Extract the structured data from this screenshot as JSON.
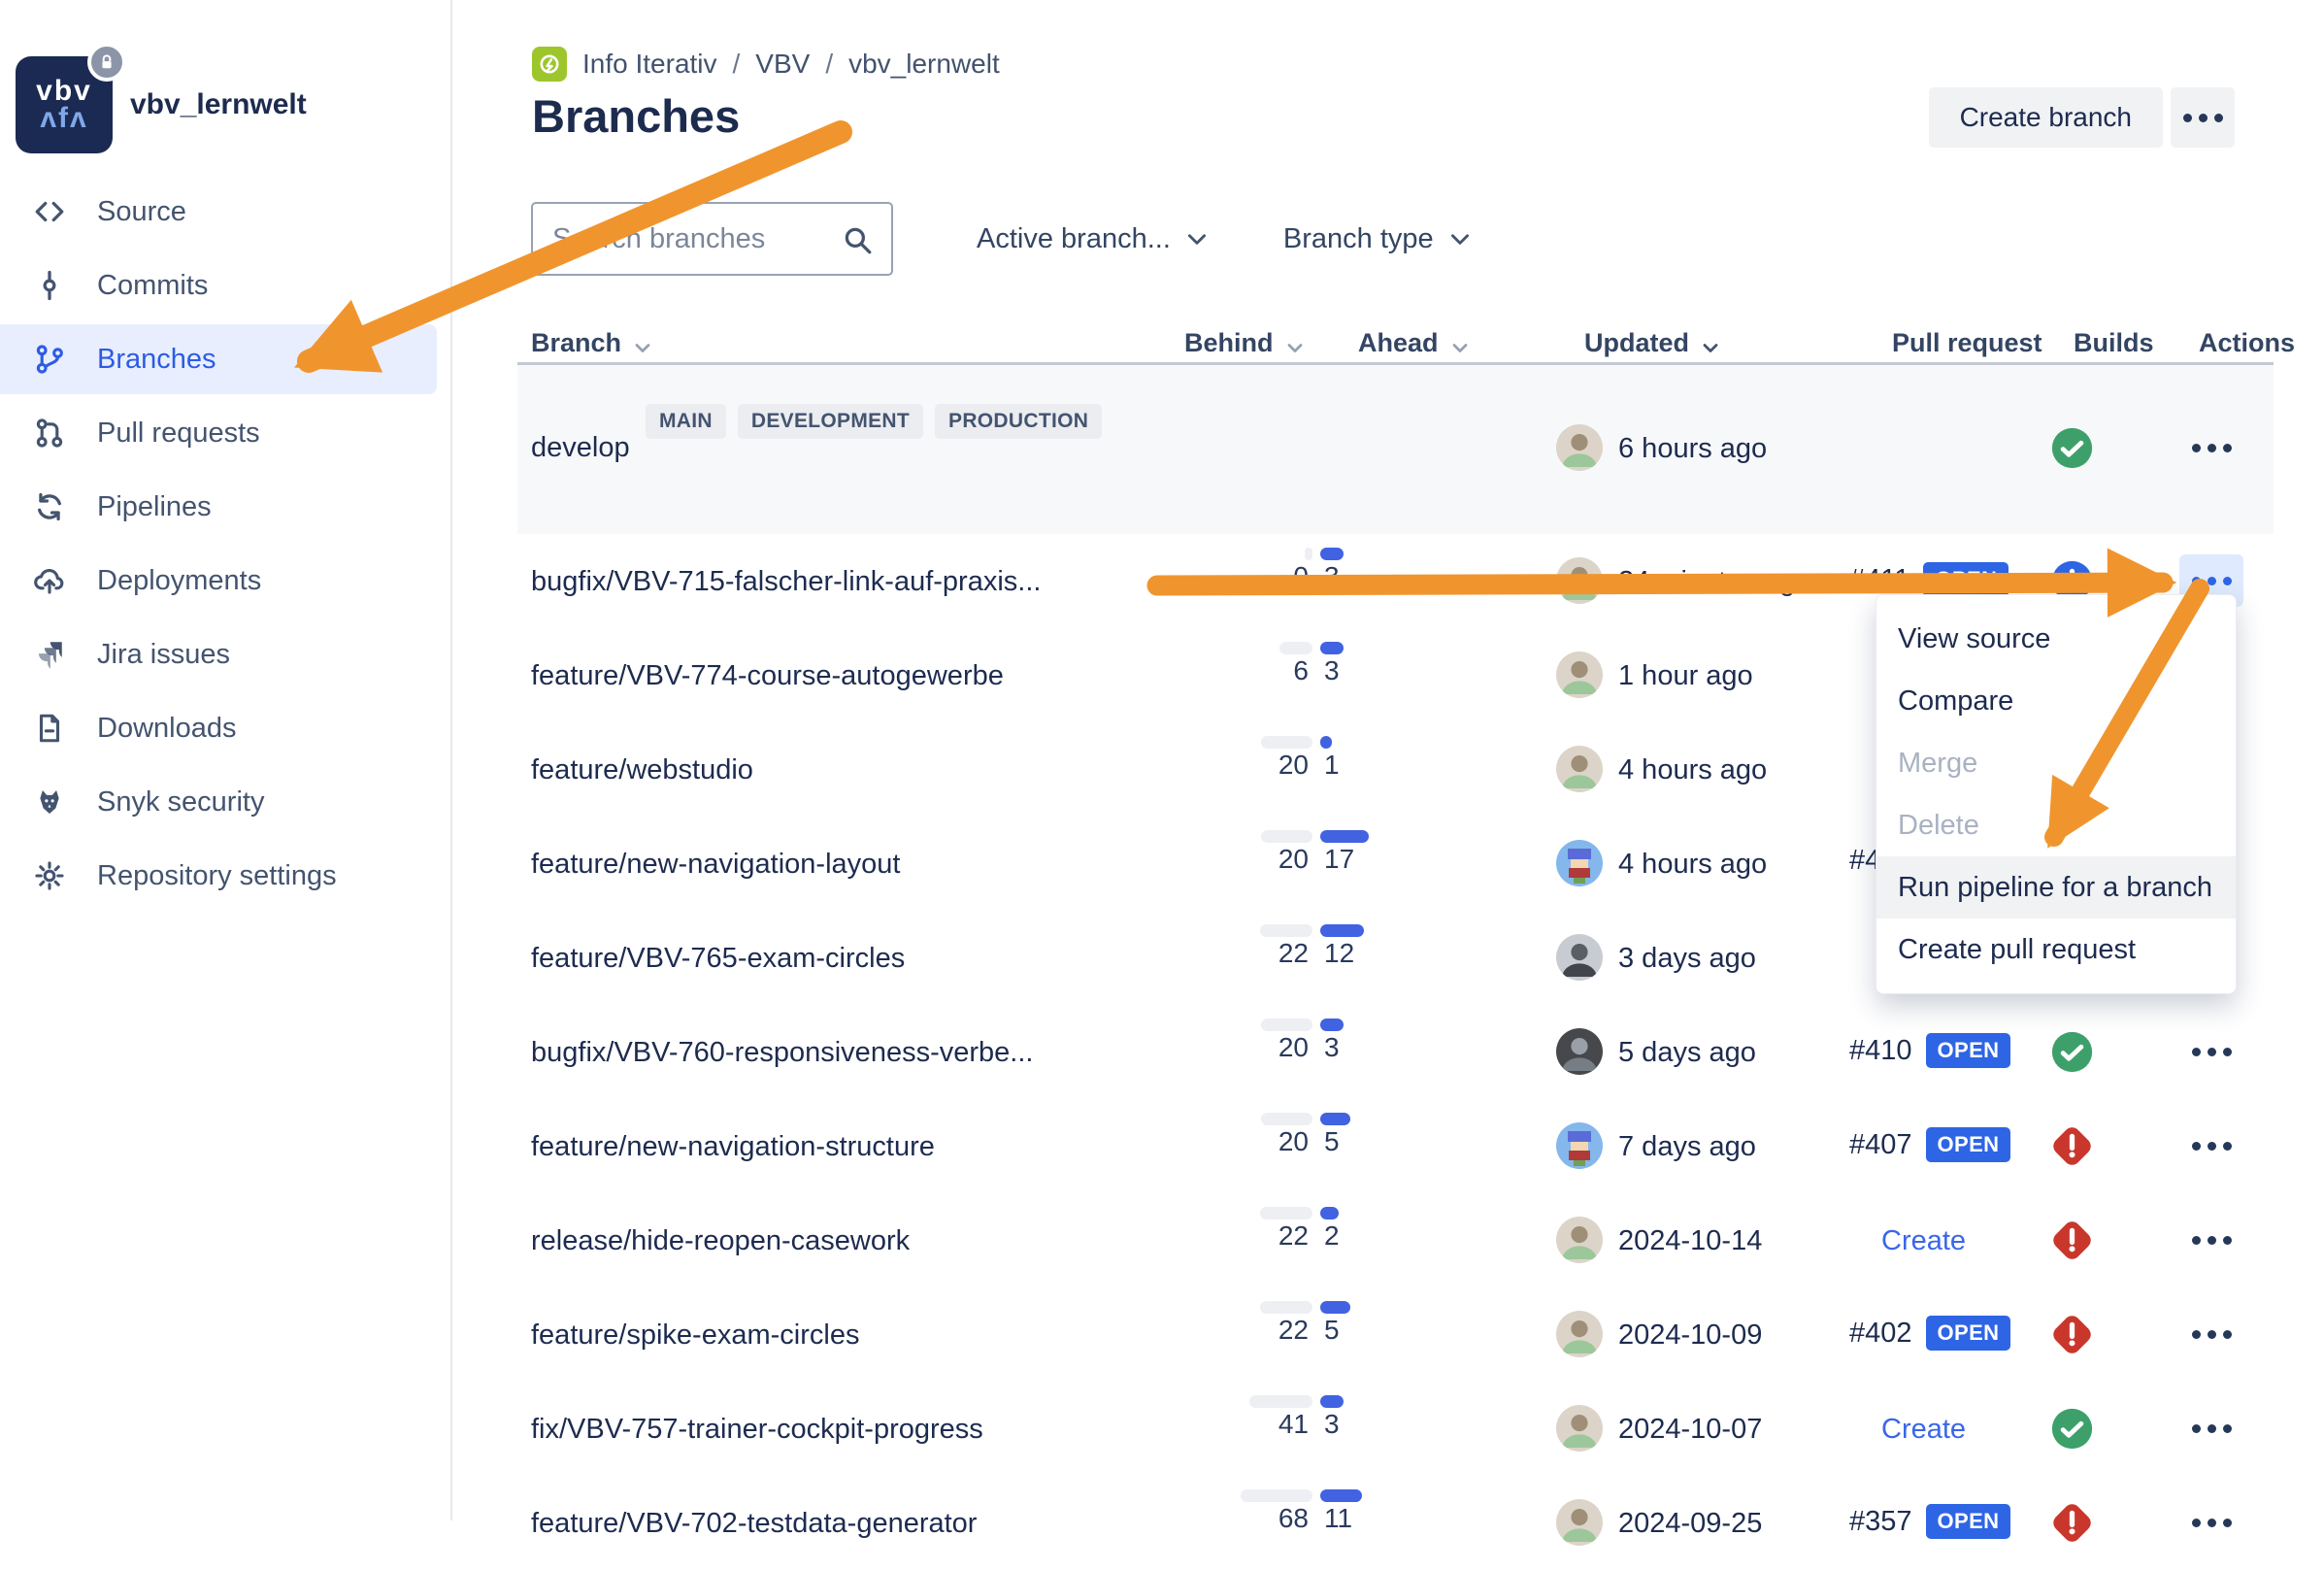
{
  "sidebar": {
    "repo_name": "vbv_lernwelt",
    "logo_text_top": "vbv",
    "logo_text_bottom": "ʌfʌ",
    "items": [
      {
        "label": "Source",
        "icon": "code",
        "active": false
      },
      {
        "label": "Commits",
        "icon": "commit",
        "active": false
      },
      {
        "label": "Branches",
        "icon": "branch",
        "active": true
      },
      {
        "label": "Pull requests",
        "icon": "pull-request",
        "active": false
      },
      {
        "label": "Pipelines",
        "icon": "pipelines",
        "active": false
      },
      {
        "label": "Deployments",
        "icon": "deployments",
        "active": false
      },
      {
        "label": "Jira issues",
        "icon": "jira",
        "active": false
      },
      {
        "label": "Downloads",
        "icon": "downloads",
        "active": false
      },
      {
        "label": "Snyk security",
        "icon": "snyk",
        "active": false
      },
      {
        "label": "Repository settings",
        "icon": "settings",
        "active": false
      }
    ]
  },
  "header": {
    "breadcrumb": [
      "Info Iterativ",
      "VBV",
      "vbv_lernwelt"
    ],
    "title": "Branches",
    "create_branch_label": "Create branch"
  },
  "filters": {
    "search_placeholder": "Search branches",
    "dropdowns": [
      {
        "label": "Active branch..."
      },
      {
        "label": "Branch type"
      }
    ]
  },
  "table": {
    "columns": [
      "Branch",
      "Behind",
      "Ahead",
      "Updated",
      "Pull request",
      "Builds",
      "Actions"
    ],
    "develop_row": {
      "name": "develop",
      "badges": [
        "MAIN",
        "DEVELOPMENT",
        "PRODUCTION"
      ],
      "updated": "6 hours ago",
      "avatar": "photo",
      "build": "success"
    },
    "rows": [
      {
        "name": "bugfix/VBV-715-falscher-link-auf-praxis...",
        "behind": 0,
        "ahead": 3,
        "updated": "24 minutes ago",
        "avatar": "photo",
        "pr_number": "#411",
        "pr_badge": "OPEN",
        "pr_link": "",
        "build": "in_progress",
        "actions": "highlighted"
      },
      {
        "name": "feature/VBV-774-course-autogewerbe",
        "behind": 6,
        "ahead": 3,
        "updated": "1 hour ago",
        "avatar": "photo",
        "pr_number": "",
        "pr_badge": "",
        "pr_link": "",
        "build": "",
        "actions": "hidden"
      },
      {
        "name": "feature/webstudio",
        "behind": 20,
        "ahead": 1,
        "updated": "4 hours ago",
        "avatar": "photo",
        "pr_number": "",
        "pr_badge": "",
        "pr_link": "",
        "build": "",
        "actions": "hidden"
      },
      {
        "name": "feature/new-navigation-layout",
        "behind": 20,
        "ahead": 17,
        "updated": "4 hours ago",
        "avatar": "pixel",
        "pr_number": "#4",
        "pr_badge": "",
        "pr_link": "",
        "build": "",
        "actions": "hidden"
      },
      {
        "name": "feature/VBV-765-exam-circles",
        "behind": 22,
        "ahead": 12,
        "updated": "3 days ago",
        "avatar": "bw",
        "pr_number": "",
        "pr_badge": "",
        "pr_link": "",
        "build": "",
        "actions": "hidden"
      },
      {
        "name": "bugfix/VBV-760-responsiveness-verbe...",
        "behind": 20,
        "ahead": 3,
        "updated": "5 days ago",
        "avatar": "dark",
        "pr_number": "#410",
        "pr_badge": "OPEN",
        "pr_link": "",
        "build": "success",
        "actions": "normal"
      },
      {
        "name": "feature/new-navigation-structure",
        "behind": 20,
        "ahead": 5,
        "updated": "7 days ago",
        "avatar": "pixel",
        "pr_number": "#407",
        "pr_badge": "OPEN",
        "pr_link": "",
        "build": "failed",
        "actions": "normal"
      },
      {
        "name": "release/hide-reopen-casework",
        "behind": 22,
        "ahead": 2,
        "updated": "2024-10-14",
        "avatar": "photo",
        "pr_number": "",
        "pr_badge": "",
        "pr_link": "Create",
        "build": "failed",
        "actions": "normal"
      },
      {
        "name": "feature/spike-exam-circles",
        "behind": 22,
        "ahead": 5,
        "updated": "2024-10-09",
        "avatar": "photo",
        "pr_number": "#402",
        "pr_badge": "OPEN",
        "pr_link": "",
        "build": "failed",
        "actions": "normal"
      },
      {
        "name": "fix/VBV-757-trainer-cockpit-progress",
        "behind": 41,
        "ahead": 3,
        "updated": "2024-10-07",
        "avatar": "photo",
        "pr_number": "",
        "pr_badge": "",
        "pr_link": "Create",
        "build": "success",
        "actions": "normal"
      },
      {
        "name": "feature/VBV-702-testdata-generator",
        "behind": 68,
        "ahead": 11,
        "updated": "2024-09-25",
        "avatar": "photo",
        "pr_number": "#357",
        "pr_badge": "OPEN",
        "pr_link": "",
        "build": "failed",
        "actions": "normal"
      }
    ]
  },
  "context_menu": {
    "items": [
      {
        "label": "View source",
        "state": "normal"
      },
      {
        "label": "Compare",
        "state": "normal"
      },
      {
        "label": "Merge",
        "state": "disabled"
      },
      {
        "label": "Delete",
        "state": "disabled"
      },
      {
        "label": "Run pipeline for a branch",
        "state": "highlighted"
      },
      {
        "label": "Create pull request",
        "state": "normal"
      }
    ]
  },
  "colors": {
    "accent_blue": "#2E65E5",
    "bar_blue": "#4162E1",
    "success_green": "#3DA06A",
    "failed_red": "#C9372C",
    "annotation_orange": "#F0952E",
    "navy_text": "#1D2B4F",
    "slate_text": "#44546F",
    "sidebar_active_bg": "#E8EEFD",
    "develop_row_bg": "#F7F8F9"
  }
}
